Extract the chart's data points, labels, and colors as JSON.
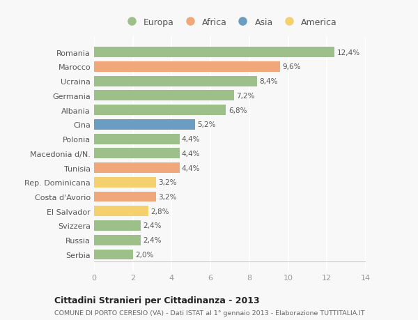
{
  "categories": [
    "Romania",
    "Marocco",
    "Ucraina",
    "Germania",
    "Albania",
    "Cina",
    "Polonia",
    "Macedonia d/N.",
    "Tunisia",
    "Rep. Dominicana",
    "Costa d'Avorio",
    "El Salvador",
    "Svizzera",
    "Russia",
    "Serbia"
  ],
  "values": [
    12.4,
    9.6,
    8.4,
    7.2,
    6.8,
    5.2,
    4.4,
    4.4,
    4.4,
    3.2,
    3.2,
    2.8,
    2.4,
    2.4,
    2.0
  ],
  "labels": [
    "12,4%",
    "9,6%",
    "8,4%",
    "7,2%",
    "6,8%",
    "5,2%",
    "4,4%",
    "4,4%",
    "4,4%",
    "3,2%",
    "3,2%",
    "2,8%",
    "2,4%",
    "2,4%",
    "2,0%"
  ],
  "continent": [
    "Europa",
    "Africa",
    "Europa",
    "Europa",
    "Europa",
    "Asia",
    "Europa",
    "Europa",
    "Africa",
    "America",
    "Africa",
    "America",
    "Europa",
    "Europa",
    "Europa"
  ],
  "colors": {
    "Europa": "#9dc08b",
    "Africa": "#f0a87b",
    "Asia": "#6b9dc2",
    "America": "#f5d06e"
  },
  "legend_order": [
    "Europa",
    "Africa",
    "Asia",
    "America"
  ],
  "xlim": [
    0,
    14
  ],
  "xticks": [
    0,
    2,
    4,
    6,
    8,
    10,
    12,
    14
  ],
  "title": "Cittadini Stranieri per Cittadinanza - 2013",
  "subtitle": "COMUNE DI PORTO CERESIO (VA) - Dati ISTAT al 1° gennaio 2013 - Elaborazione TUTTITALIA.IT",
  "bg_color": "#f8f8f8",
  "grid_color": "#ffffff",
  "bar_height": 0.72
}
